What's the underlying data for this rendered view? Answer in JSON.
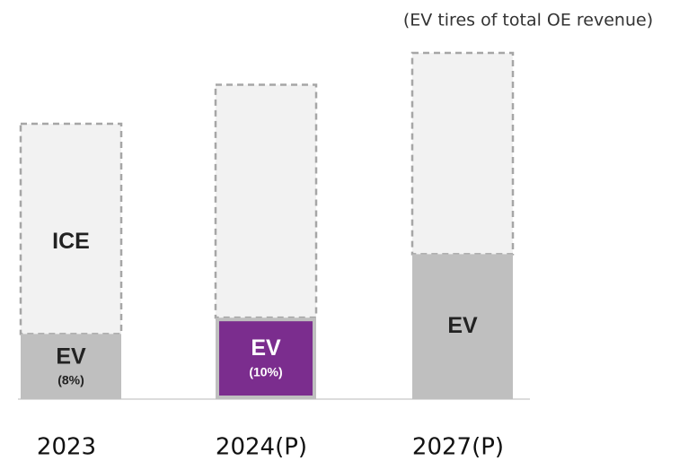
{
  "chart_data": {
    "type": "stacked_bar",
    "annotation": "(EV tires of total OE revenue)",
    "categories": [
      "2023",
      "2024(P)",
      "2027(P)"
    ],
    "series": [
      {
        "name": "EV",
        "colors": [
          "#bfbfbf",
          "#7b2d8e",
          "#bfbfbf"
        ],
        "values": [
          8,
          10,
          17.8
        ],
        "value_labels": [
          "(8%)",
          "(10%)",
          null
        ]
      },
      {
        "name": "ICE",
        "color": "#f2f2f2",
        "values": [
          25.8,
          28.6,
          24.7
        ]
      }
    ],
    "ylim": [
      0,
      49
    ]
  }
}
